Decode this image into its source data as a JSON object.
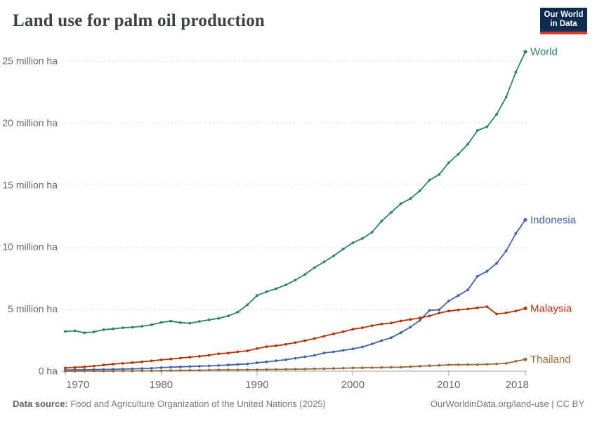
{
  "header": {
    "title": "Land use for palm oil production",
    "logo": {
      "line1": "Our World",
      "line2": "in Data",
      "bg_color": "#0e2a4e",
      "bar_color": "#dc3d2b"
    }
  },
  "footer": {
    "source_label": "Data source:",
    "source_text": " Food and Agriculture Organization of the United Nations (2025)",
    "link_text": "OurWorldinData.org/land-use",
    "separator": " | ",
    "license": "CC BY"
  },
  "chart_data": {
    "type": "line",
    "title": "Land use for palm oil production",
    "unit": "million hectares",
    "grid": "horizontal-dashed",
    "legend_position": "end-of-line-labels",
    "xlim": [
      1970,
      2018
    ],
    "ylim": [
      0,
      25
    ],
    "x_ticks": [
      1970,
      1980,
      1990,
      2000,
      2010,
      2018
    ],
    "y_ticks": [
      0,
      5,
      10,
      15,
      20,
      25
    ],
    "y_tick_labels": [
      "0 ha",
      "5 million ha",
      "10 million ha",
      "15 million ha",
      "20 million ha",
      "25 million ha"
    ],
    "x": [
      1970,
      1971,
      1972,
      1973,
      1974,
      1975,
      1976,
      1977,
      1978,
      1979,
      1980,
      1981,
      1982,
      1983,
      1984,
      1985,
      1986,
      1987,
      1988,
      1989,
      1990,
      1991,
      1992,
      1993,
      1994,
      1995,
      1996,
      1997,
      1998,
      1999,
      2000,
      2001,
      2002,
      2003,
      2004,
      2005,
      2006,
      2007,
      2008,
      2009,
      2010,
      2011,
      2012,
      2013,
      2014,
      2015,
      2016,
      2017,
      2018
    ],
    "series": [
      {
        "name": "World",
        "color": "#2C8465",
        "values": [
          3.2,
          3.25,
          3.1,
          3.17,
          3.34,
          3.41,
          3.5,
          3.54,
          3.62,
          3.74,
          3.93,
          4.03,
          3.92,
          3.87,
          4.01,
          4.14,
          4.26,
          4.45,
          4.77,
          5.35,
          6.1,
          6.4,
          6.65,
          6.95,
          7.35,
          7.8,
          8.35,
          8.8,
          9.3,
          9.85,
          10.35,
          10.7,
          11.2,
          12.1,
          12.8,
          13.5,
          13.9,
          14.55,
          15.4,
          15.85,
          16.8,
          17.5,
          18.3,
          19.4,
          19.7,
          20.7,
          22.1,
          24.1,
          25.75
        ]
      },
      {
        "name": "Indonesia",
        "color": "#4066A5",
        "values": [
          0.1,
          0.11,
          0.12,
          0.13,
          0.14,
          0.15,
          0.17,
          0.19,
          0.21,
          0.23,
          0.29,
          0.32,
          0.35,
          0.38,
          0.41,
          0.43,
          0.46,
          0.5,
          0.55,
          0.58,
          0.68,
          0.75,
          0.84,
          0.92,
          1.04,
          1.16,
          1.28,
          1.47,
          1.56,
          1.68,
          1.8,
          1.95,
          2.2,
          2.46,
          2.7,
          3.1,
          3.55,
          4.1,
          4.9,
          4.95,
          5.65,
          6.1,
          6.55,
          7.65,
          8.05,
          8.7,
          9.7,
          11.1,
          12.2
        ]
      },
      {
        "name": "Malaysia",
        "color": "#B13507",
        "values": [
          0.26,
          0.3,
          0.35,
          0.42,
          0.5,
          0.57,
          0.63,
          0.69,
          0.76,
          0.83,
          0.91,
          0.98,
          1.05,
          1.13,
          1.2,
          1.29,
          1.41,
          1.46,
          1.56,
          1.64,
          1.82,
          1.98,
          2.05,
          2.16,
          2.31,
          2.46,
          2.63,
          2.82,
          3.01,
          3.18,
          3.38,
          3.5,
          3.67,
          3.8,
          3.88,
          4.05,
          4.17,
          4.3,
          4.45,
          4.69,
          4.85,
          4.94,
          5.01,
          5.11,
          5.2,
          4.61,
          4.7,
          4.85,
          5.07
        ]
      },
      {
        "name": "Thailand",
        "color": "#996D39",
        "values": [
          0.0,
          0.0,
          0.01,
          0.01,
          0.01,
          0.01,
          0.02,
          0.02,
          0.03,
          0.03,
          0.04,
          0.05,
          0.06,
          0.07,
          0.08,
          0.09,
          0.1,
          0.1,
          0.11,
          0.12,
          0.12,
          0.13,
          0.14,
          0.15,
          0.16,
          0.17,
          0.19,
          0.2,
          0.22,
          0.24,
          0.26,
          0.27,
          0.28,
          0.3,
          0.31,
          0.32,
          0.36,
          0.4,
          0.44,
          0.47,
          0.51,
          0.52,
          0.53,
          0.53,
          0.56,
          0.59,
          0.63,
          0.8,
          0.95
        ]
      }
    ]
  }
}
